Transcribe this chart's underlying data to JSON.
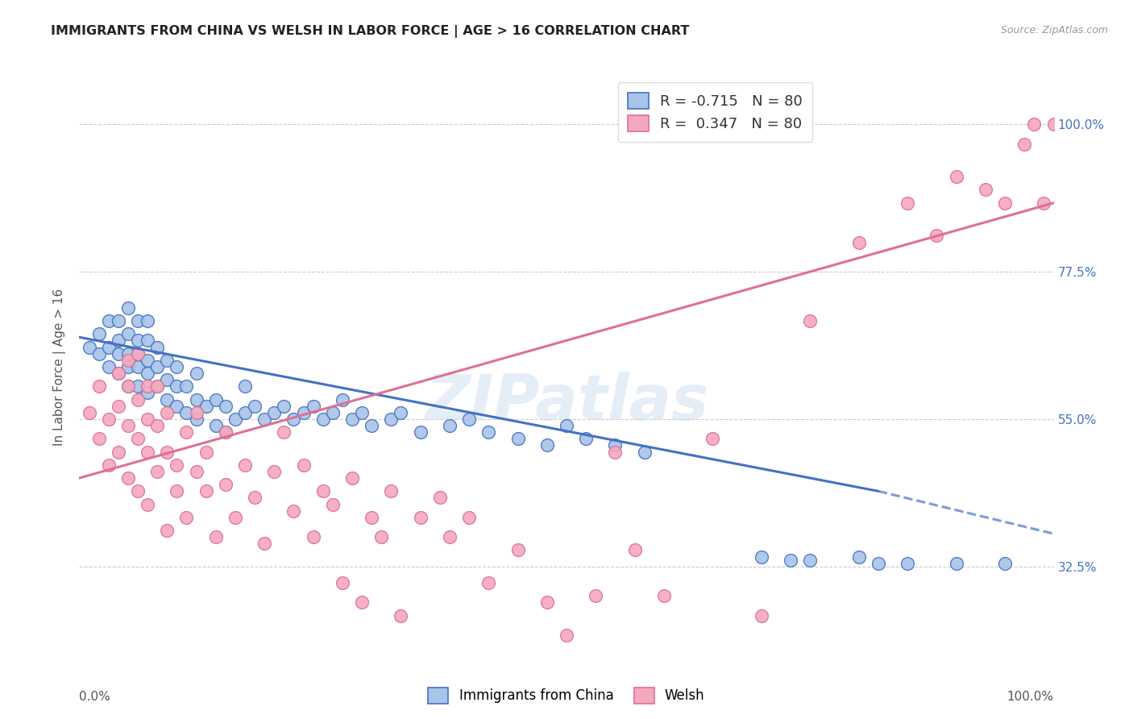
{
  "title": "IMMIGRANTS FROM CHINA VS WELSH IN LABOR FORCE | AGE > 16 CORRELATION CHART",
  "source": "Source: ZipAtlas.com",
  "ylabel": "In Labor Force | Age > 16",
  "ytick_labels": [
    "100.0%",
    "77.5%",
    "55.0%",
    "32.5%"
  ],
  "ytick_values": [
    1.0,
    0.775,
    0.55,
    0.325
  ],
  "xlim": [
    0.0,
    1.0
  ],
  "ylim": [
    0.18,
    1.08
  ],
  "legend_R_china": "-0.715",
  "legend_R_welsh": "0.347",
  "legend_N": "80",
  "watermark": "ZIPatlas",
  "china_color": "#a8c4e8",
  "welsh_color": "#f4a8c0",
  "china_line_color": "#4472c4",
  "welsh_line_color": "#e07090",
  "china_line": {
    "x0": 0.0,
    "y0": 0.675,
    "x1": 0.82,
    "y1": 0.44,
    "xdash0": 0.82,
    "ydash0": 0.44,
    "xdash1": 1.0,
    "ydash1": 0.375
  },
  "welsh_line": {
    "x0": 0.0,
    "y0": 0.46,
    "x1": 1.0,
    "y1": 0.88
  },
  "china_scatter_x": [
    0.01,
    0.02,
    0.02,
    0.03,
    0.03,
    0.03,
    0.04,
    0.04,
    0.04,
    0.04,
    0.05,
    0.05,
    0.05,
    0.05,
    0.05,
    0.06,
    0.06,
    0.06,
    0.06,
    0.06,
    0.07,
    0.07,
    0.07,
    0.07,
    0.07,
    0.08,
    0.08,
    0.08,
    0.09,
    0.09,
    0.09,
    0.1,
    0.1,
    0.1,
    0.11,
    0.11,
    0.12,
    0.12,
    0.12,
    0.13,
    0.14,
    0.14,
    0.15,
    0.15,
    0.16,
    0.17,
    0.17,
    0.18,
    0.19,
    0.2,
    0.21,
    0.22,
    0.23,
    0.24,
    0.25,
    0.26,
    0.27,
    0.28,
    0.29,
    0.3,
    0.32,
    0.33,
    0.35,
    0.38,
    0.4,
    0.42,
    0.45,
    0.48,
    0.5,
    0.52,
    0.55,
    0.58,
    0.7,
    0.73,
    0.75,
    0.8,
    0.82,
    0.85,
    0.9,
    0.95
  ],
  "china_scatter_y": [
    0.66,
    0.65,
    0.68,
    0.63,
    0.66,
    0.7,
    0.62,
    0.65,
    0.67,
    0.7,
    0.6,
    0.63,
    0.65,
    0.68,
    0.72,
    0.6,
    0.63,
    0.65,
    0.67,
    0.7,
    0.59,
    0.62,
    0.64,
    0.67,
    0.7,
    0.6,
    0.63,
    0.66,
    0.58,
    0.61,
    0.64,
    0.57,
    0.6,
    0.63,
    0.56,
    0.6,
    0.55,
    0.58,
    0.62,
    0.57,
    0.54,
    0.58,
    0.53,
    0.57,
    0.55,
    0.56,
    0.6,
    0.57,
    0.55,
    0.56,
    0.57,
    0.55,
    0.56,
    0.57,
    0.55,
    0.56,
    0.58,
    0.55,
    0.56,
    0.54,
    0.55,
    0.56,
    0.53,
    0.54,
    0.55,
    0.53,
    0.52,
    0.51,
    0.54,
    0.52,
    0.51,
    0.5,
    0.34,
    0.335,
    0.335,
    0.34,
    0.33,
    0.33,
    0.33,
    0.33
  ],
  "welsh_scatter_x": [
    0.01,
    0.02,
    0.02,
    0.03,
    0.03,
    0.04,
    0.04,
    0.04,
    0.05,
    0.05,
    0.05,
    0.05,
    0.06,
    0.06,
    0.06,
    0.06,
    0.07,
    0.07,
    0.07,
    0.07,
    0.08,
    0.08,
    0.08,
    0.09,
    0.09,
    0.09,
    0.1,
    0.1,
    0.11,
    0.11,
    0.12,
    0.12,
    0.13,
    0.13,
    0.14,
    0.15,
    0.15,
    0.16,
    0.17,
    0.18,
    0.19,
    0.2,
    0.21,
    0.22,
    0.23,
    0.24,
    0.25,
    0.26,
    0.27,
    0.28,
    0.29,
    0.3,
    0.31,
    0.32,
    0.33,
    0.35,
    0.37,
    0.38,
    0.4,
    0.42,
    0.45,
    0.48,
    0.5,
    0.53,
    0.55,
    0.57,
    0.6,
    0.65,
    0.7,
    0.75,
    0.8,
    0.85,
    0.88,
    0.9,
    0.93,
    0.95,
    0.97,
    0.98,
    0.99,
    1.0
  ],
  "welsh_scatter_y": [
    0.56,
    0.52,
    0.6,
    0.48,
    0.55,
    0.62,
    0.5,
    0.57,
    0.64,
    0.46,
    0.54,
    0.6,
    0.44,
    0.52,
    0.58,
    0.65,
    0.5,
    0.55,
    0.42,
    0.6,
    0.47,
    0.54,
    0.6,
    0.38,
    0.5,
    0.56,
    0.48,
    0.44,
    0.53,
    0.4,
    0.47,
    0.56,
    0.44,
    0.5,
    0.37,
    0.53,
    0.45,
    0.4,
    0.48,
    0.43,
    0.36,
    0.47,
    0.53,
    0.41,
    0.48,
    0.37,
    0.44,
    0.42,
    0.3,
    0.46,
    0.27,
    0.4,
    0.37,
    0.44,
    0.25,
    0.4,
    0.43,
    0.37,
    0.4,
    0.3,
    0.35,
    0.27,
    0.22,
    0.28,
    0.5,
    0.35,
    0.28,
    0.52,
    0.25,
    0.7,
    0.82,
    0.88,
    0.83,
    0.92,
    0.9,
    0.88,
    0.97,
    1.0,
    0.88,
    1.0
  ]
}
